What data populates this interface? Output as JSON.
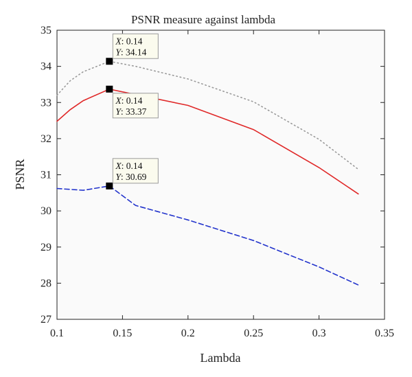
{
  "chart_data": {
    "type": "line",
    "title": "PSNR measure against lambda",
    "xlabel": "Lambda",
    "ylabel": "PSNR",
    "xlim": [
      0.1,
      0.35
    ],
    "ylim": [
      27,
      35
    ],
    "xticks": [
      0.1,
      0.15,
      0.2,
      0.25,
      0.3,
      0.35
    ],
    "xtick_labels": [
      "0.1",
      "0.15",
      "0.2",
      "0.25",
      "0.3",
      "0.35"
    ],
    "yticks": [
      27,
      28,
      29,
      30,
      31,
      32,
      33,
      34,
      35
    ],
    "ytick_labels": [
      "27",
      "28",
      "29",
      "30",
      "31",
      "32",
      "33",
      "34",
      "35"
    ],
    "grid": false,
    "legend": "none",
    "series": [
      {
        "style": "dotted",
        "color": "#9a9a9a",
        "x": [
          0.1,
          0.11,
          0.12,
          0.14,
          0.16,
          0.2,
          0.25,
          0.3,
          0.33
        ],
        "y": [
          33.2,
          33.6,
          33.85,
          34.14,
          34.0,
          33.65,
          33.02,
          31.98,
          31.15
        ]
      },
      {
        "style": "solid",
        "color": "#e02828",
        "x": [
          0.1,
          0.11,
          0.12,
          0.14,
          0.16,
          0.2,
          0.25,
          0.3,
          0.33
        ],
        "y": [
          32.48,
          32.8,
          33.05,
          33.37,
          33.22,
          32.92,
          32.25,
          31.2,
          30.47
        ]
      },
      {
        "style": "dashed",
        "color": "#2233cc",
        "x": [
          0.1,
          0.12,
          0.14,
          0.16,
          0.2,
          0.25,
          0.3,
          0.33
        ],
        "y": [
          30.62,
          30.57,
          30.69,
          30.15,
          29.75,
          29.18,
          28.45,
          27.95
        ]
      }
    ],
    "datatips": [
      {
        "x": 0.14,
        "y": 34.14,
        "x_label": "X",
        "y_label": "Y",
        "x_text": ": 0.14",
        "y_text": ": 34.14"
      },
      {
        "x": 0.14,
        "y": 33.37,
        "x_label": "X",
        "y_label": "Y",
        "x_text": ": 0.14",
        "y_text": ": 33.37"
      },
      {
        "x": 0.14,
        "y": 30.69,
        "x_label": "X",
        "y_label": "Y",
        "x_text": ": 0.14",
        "y_text": ": 30.69"
      }
    ],
    "colors": {
      "plot_background": "#fafafa",
      "datatip_background": "#fbfbee",
      "datatip_border": "#9a9a9a",
      "marker": "#000000"
    }
  }
}
